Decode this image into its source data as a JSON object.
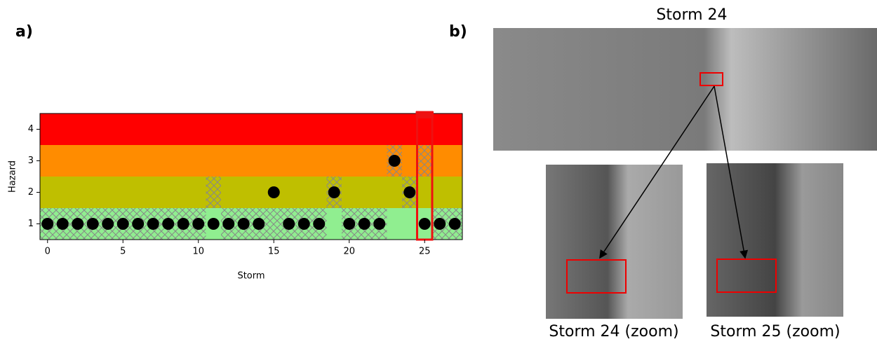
{
  "panel_labels": [
    "a)",
    "b)"
  ],
  "chart_data": {
    "type": "scatter",
    "xlabel": "Storm",
    "ylabel": "Hazard",
    "x": [
      0,
      1,
      2,
      3,
      4,
      5,
      6,
      7,
      8,
      9,
      10,
      11,
      12,
      13,
      14,
      15,
      16,
      17,
      18,
      19,
      20,
      21,
      22,
      23,
      24,
      25,
      26,
      27
    ],
    "values": [
      1,
      1,
      1,
      1,
      1,
      1,
      1,
      1,
      1,
      1,
      1,
      1,
      1,
      1,
      1,
      2,
      1,
      1,
      1,
      2,
      1,
      1,
      1,
      3,
      2,
      1,
      1,
      1
    ],
    "observed": [
      1,
      1,
      1,
      1,
      1,
      1,
      1,
      1,
      1,
      1,
      1,
      2,
      1,
      1,
      1,
      1,
      1,
      1,
      1,
      2,
      1,
      1,
      1,
      3,
      2,
      3,
      1,
      1
    ],
    "band_colors": [
      "#90ee90",
      "#bfbf00",
      "#ff8c00",
      "#ff0000"
    ],
    "marker_color": "#000000",
    "highlight_x": 25,
    "highlight_color": "#ee1111",
    "xlim": [
      -0.5,
      27.5
    ],
    "xticks": [
      0,
      5,
      10,
      15,
      20,
      25
    ],
    "ylim": [
      0.5,
      4.5
    ],
    "yticks": [
      1,
      2,
      3,
      4
    ]
  },
  "images": {
    "main_caption": "Storm 24",
    "zoom_captions": [
      "Storm 24 (zoom)",
      "Storm 25 (zoom)"
    ]
  }
}
